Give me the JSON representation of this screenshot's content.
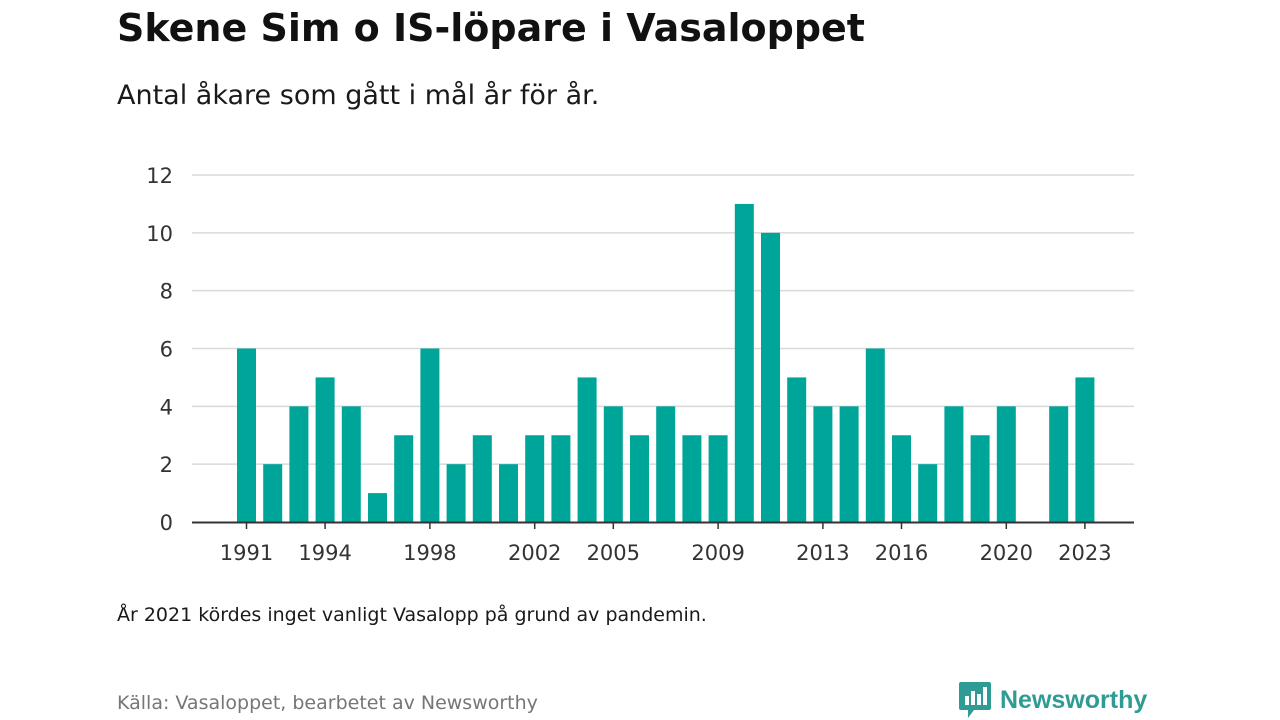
{
  "header": {
    "title": "Skene Sim o IS-löpare i Vasaloppet",
    "subtitle": "Antal åkare som gått i mål år för år."
  },
  "footer": {
    "note": "År 2021 kördes inget vanligt Vasalopp på grund av pandemin.",
    "source": "Källa: Vasaloppet, bearbetet av Newsworthy",
    "brand": "Newsworthy",
    "brand_icon": "bar-chart-speech-icon"
  },
  "colors": {
    "bar": "#00a599",
    "grid": "#d9d9d9",
    "axis": "#333333",
    "brand": "#2e9c94"
  },
  "chart_data": {
    "type": "bar",
    "title": "Skene Sim o IS-löpare i Vasaloppet",
    "subtitle": "Antal åkare som gått i mål år för år.",
    "xlabel": "",
    "ylabel": "",
    "x": [
      1991,
      1992,
      1993,
      1994,
      1995,
      1996,
      1997,
      1998,
      1999,
      2000,
      2001,
      2002,
      2003,
      2004,
      2005,
      2006,
      2007,
      2008,
      2009,
      2010,
      2011,
      2012,
      2013,
      2014,
      2015,
      2016,
      2017,
      2018,
      2019,
      2020,
      2021,
      2022,
      2023
    ],
    "values": [
      6,
      2,
      4,
      5,
      4,
      1,
      3,
      6,
      2,
      3,
      2,
      3,
      3,
      5,
      4,
      3,
      4,
      3,
      3,
      11,
      10,
      5,
      4,
      4,
      6,
      3,
      2,
      4,
      3,
      4,
      null,
      4,
      5
    ],
    "xticks": [
      1991,
      1994,
      1998,
      2002,
      2005,
      2009,
      2013,
      2016,
      2020,
      2023
    ],
    "yticks": [
      0,
      2,
      4,
      6,
      8,
      10,
      12
    ],
    "ylim": [
      0,
      12
    ],
    "grid": true,
    "legend": "none"
  }
}
